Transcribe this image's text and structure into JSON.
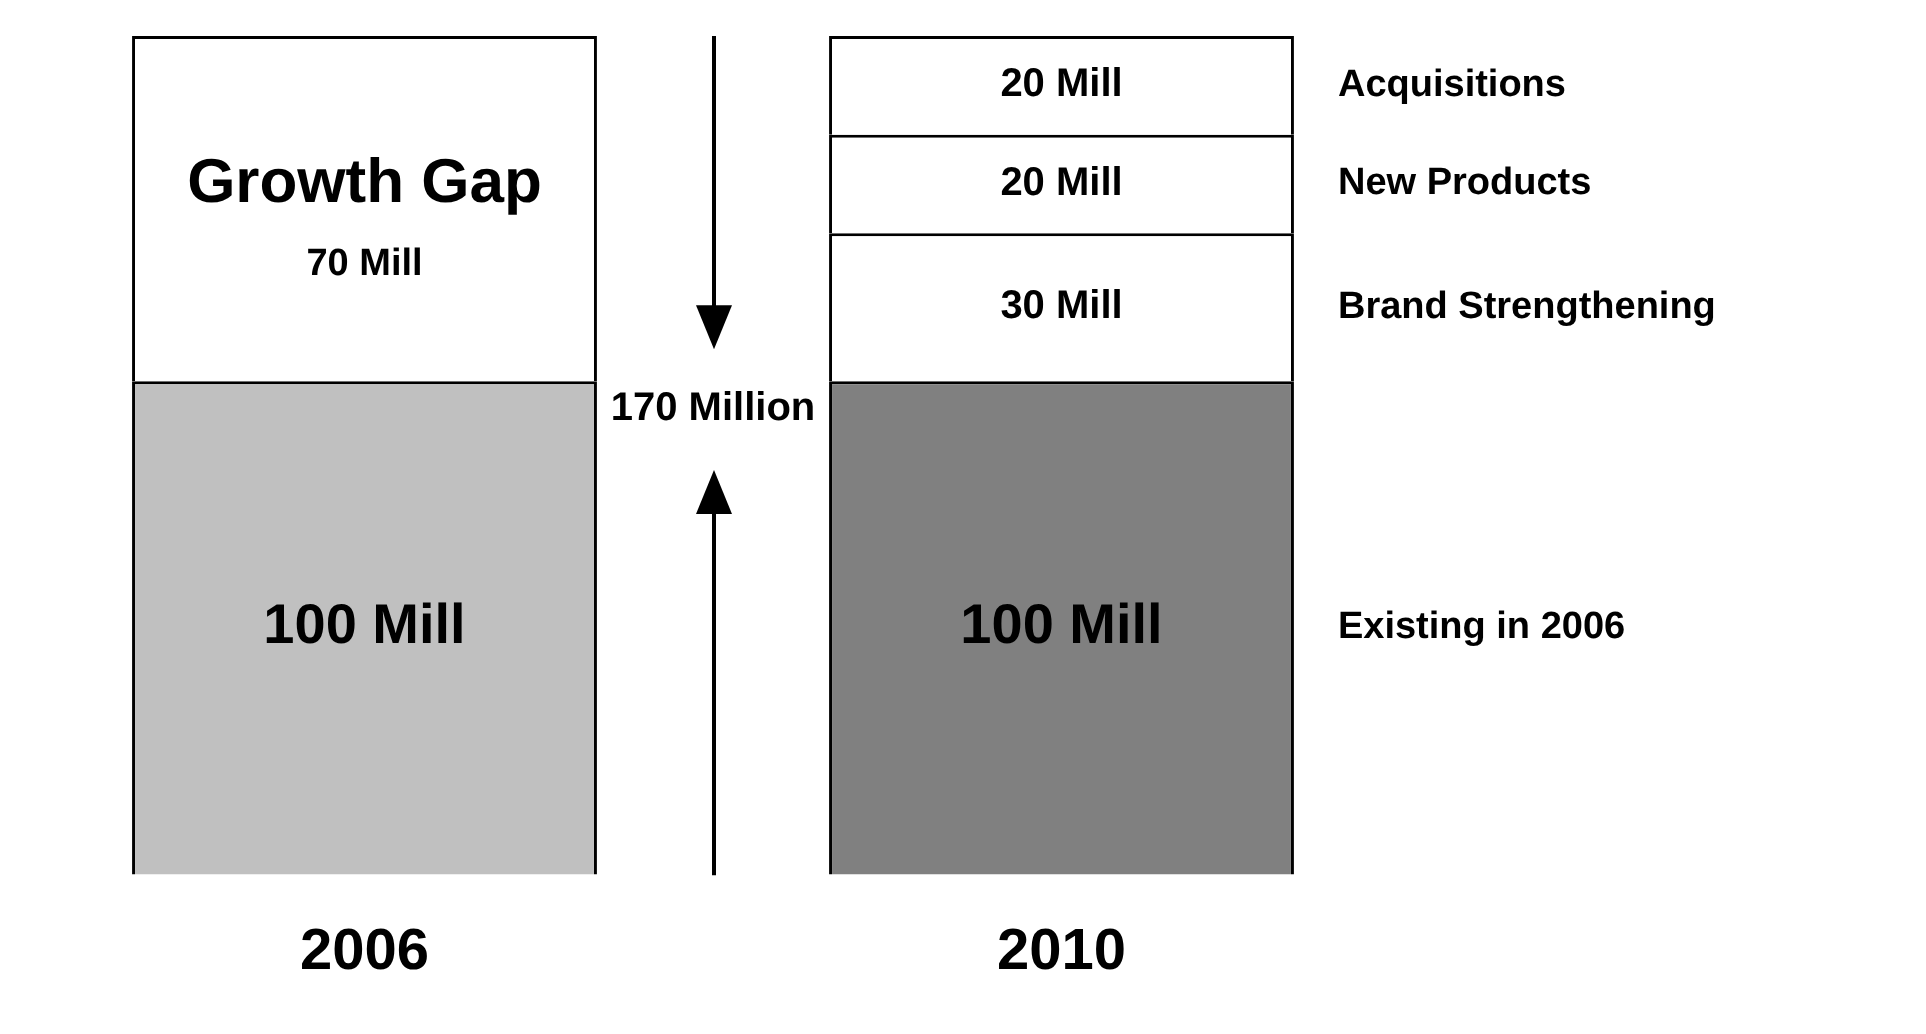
{
  "chart_data": {
    "type": "bar",
    "stacked": true,
    "categories": [
      "2006",
      "2010"
    ],
    "series": [
      {
        "name": "Existing in 2006",
        "colors": [
          "#c0c0c0",
          "#808080"
        ],
        "values": [
          100,
          100
        ],
        "value_labels": [
          "100 Mill",
          "100 Mill"
        ]
      },
      {
        "name": "Growth Gap",
        "color": "#ffffff",
        "values": [
          70,
          null
        ],
        "value_labels": [
          "70 Mill",
          null
        ]
      },
      {
        "name": "Brand Strengthening",
        "color": "#ffffff",
        "values": [
          null,
          30
        ],
        "value_labels": [
          null,
          "30 Mill"
        ]
      },
      {
        "name": "New Products",
        "color": "#ffffff",
        "values": [
          null,
          20
        ],
        "value_labels": [
          null,
          "20 Mill"
        ]
      },
      {
        "name": "Acquisitions",
        "color": "#ffffff",
        "values": [
          null,
          20
        ],
        "value_labels": [
          null,
          "20 Mill"
        ]
      }
    ],
    "annotations": [
      "170 Million"
    ]
  }
}
